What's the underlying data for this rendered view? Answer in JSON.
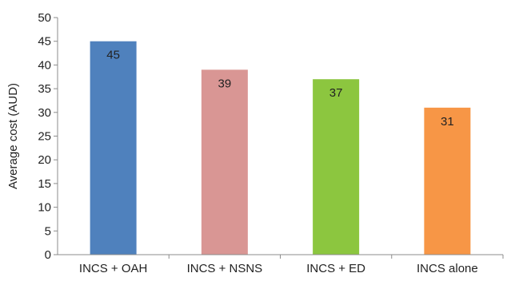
{
  "chart_data": {
    "type": "bar",
    "title": "",
    "xlabel": "",
    "ylabel": "Average cost (AUD)",
    "ylim": [
      0,
      50
    ],
    "yticks": [
      0,
      5,
      10,
      15,
      20,
      25,
      30,
      35,
      40,
      45,
      50
    ],
    "grid": false,
    "legend": "none",
    "categories": [
      "INCS + OAH",
      "INCS + NSNS",
      "INCS + ED",
      "INCS alone"
    ],
    "values": [
      45,
      39,
      37,
      31
    ],
    "data_labels": [
      "45",
      "39",
      "37",
      "31"
    ],
    "colors": [
      "#4f81bd",
      "#d99694",
      "#8cc63f",
      "#f79646"
    ]
  }
}
